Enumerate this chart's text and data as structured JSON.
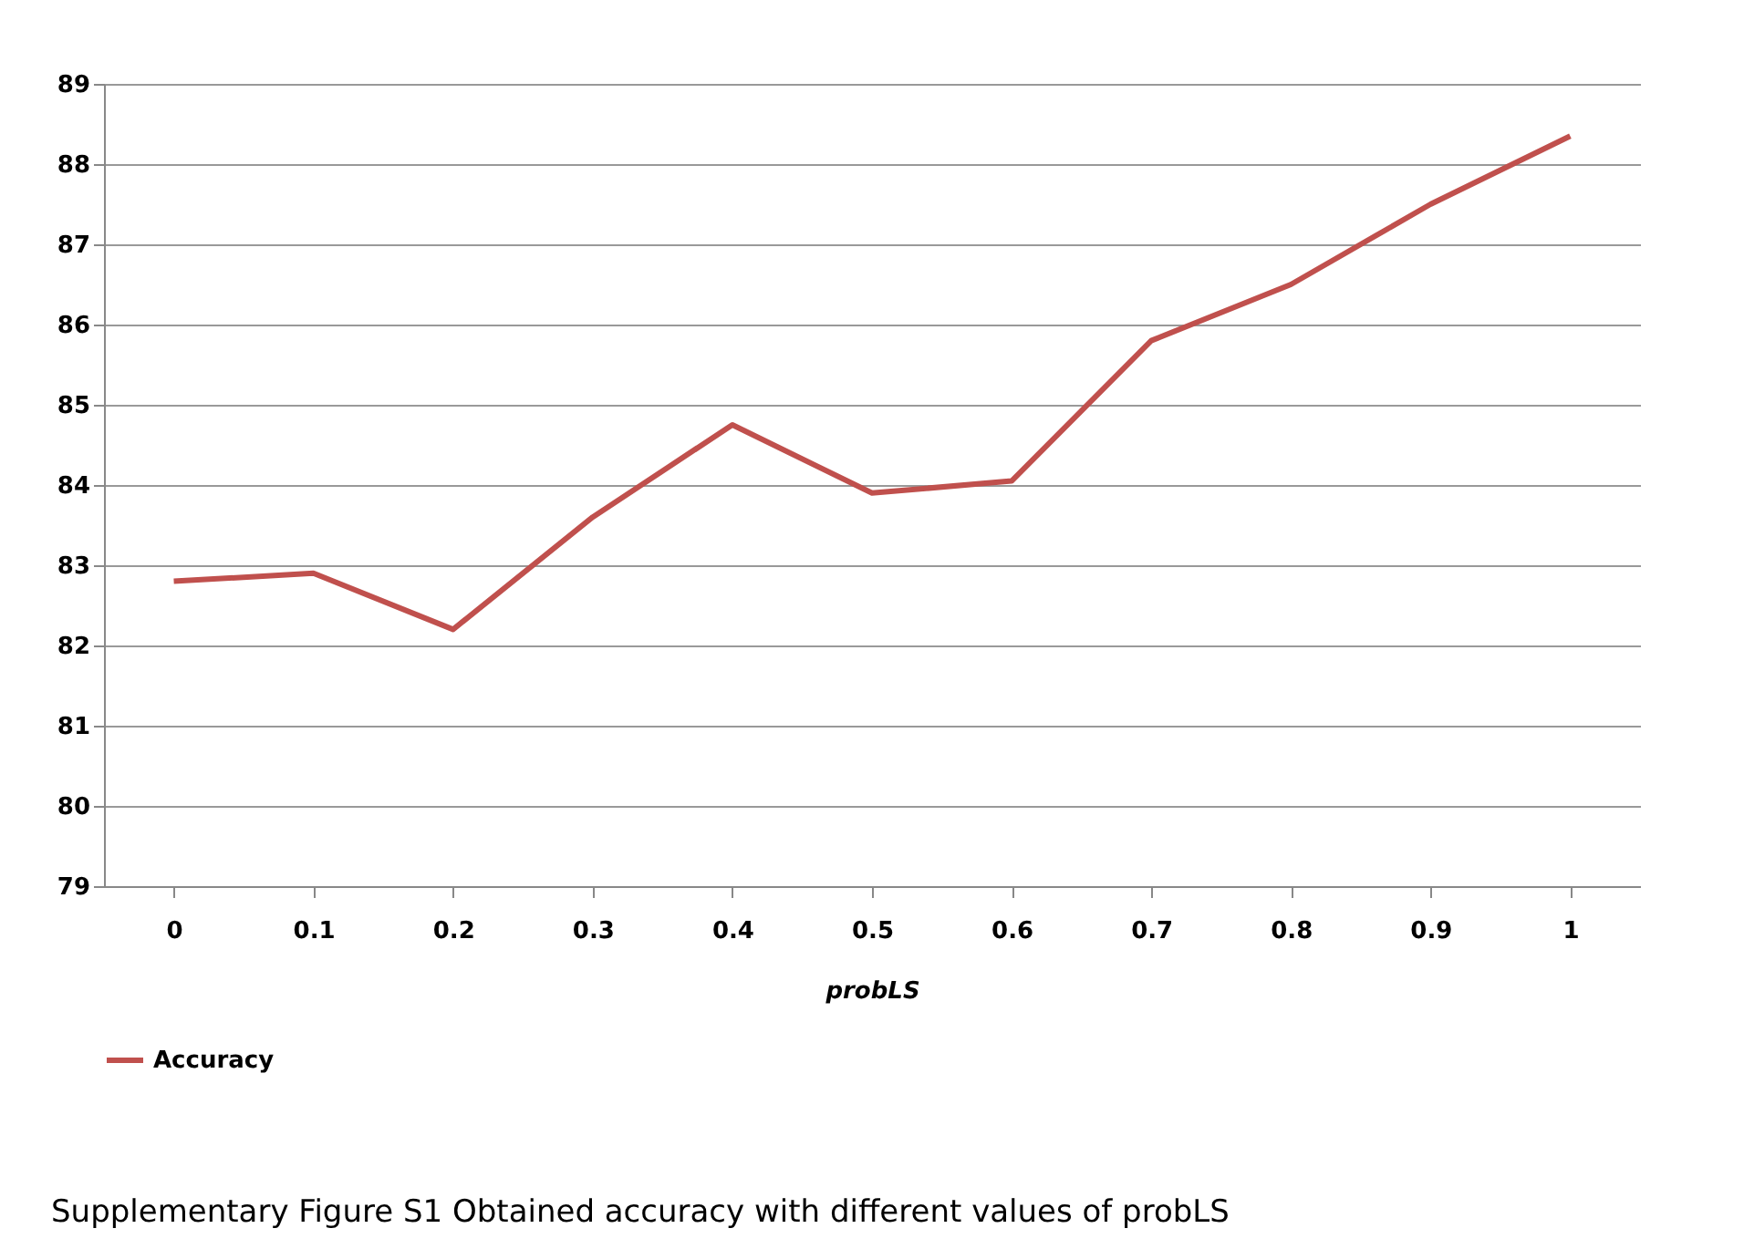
{
  "chart_data": {
    "type": "line",
    "xlabel": "probLS",
    "categories": [
      "0",
      "0.1",
      "0.2",
      "0.3",
      "0.4",
      "0.5",
      "0.6",
      "0.7",
      "0.8",
      "0.9",
      "1"
    ],
    "series": [
      {
        "name": "Accuracy",
        "color": "#c0504d",
        "values": [
          82.8,
          82.9,
          82.2,
          83.6,
          84.75,
          83.9,
          84.05,
          85.8,
          86.5,
          87.5,
          88.35
        ]
      }
    ],
    "ylim": [
      79,
      89
    ],
    "yticks": [
      79,
      80,
      81,
      82,
      83,
      84,
      85,
      86,
      87,
      88,
      89
    ],
    "grid": "y",
    "legend": "bottom",
    "marker": "none",
    "line_style": "solid",
    "annotations": [
      "Supplementary Figure S1 Obtained accuracy with different values of probLS"
    ]
  }
}
